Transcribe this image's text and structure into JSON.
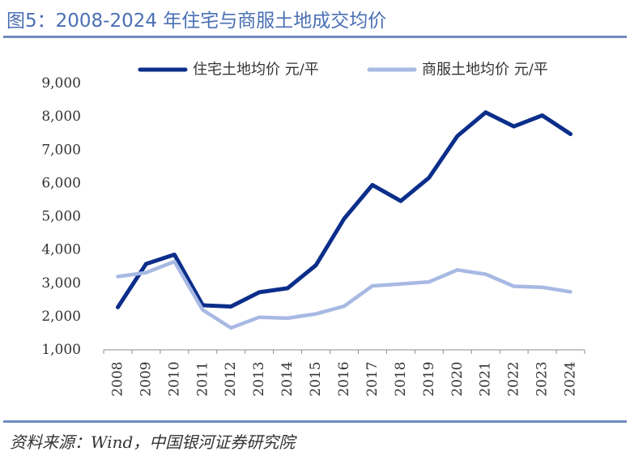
{
  "header": {
    "title": "图5：2008-2024 年住宅与商服土地成交均价"
  },
  "footer": {
    "source": "资料来源：Wind，中国银河证券研究院"
  },
  "chart_data": {
    "type": "line",
    "title": "图5：2008-2024 年住宅与商服土地成交均价",
    "xlabel": "",
    "ylabel": "",
    "categories": [
      "2008",
      "2009",
      "2010",
      "2011",
      "2012",
      "2013",
      "2014",
      "2015",
      "2016",
      "2017",
      "2018",
      "2019",
      "2020",
      "2021",
      "2022",
      "2023",
      "2024"
    ],
    "ylim": [
      1000,
      9000
    ],
    "yticks": [
      1000,
      2000,
      3000,
      4000,
      5000,
      6000,
      7000,
      8000,
      9000
    ],
    "ytick_labels": [
      "1,000",
      "2,000",
      "3,000",
      "4,000",
      "5,000",
      "6,000",
      "7,000",
      "8,000",
      "9,000"
    ],
    "legend_position": "top-center",
    "grid": false,
    "series": [
      {
        "name": "住宅土地均价 元/平",
        "color": "#0b2e8a",
        "values": [
          2280,
          3580,
          3860,
          2340,
          2300,
          2730,
          2850,
          3540,
          4940,
          5950,
          5470,
          6170,
          7420,
          8130,
          7710,
          8040,
          7480
        ]
      },
      {
        "name": "商服土地均价 元/平",
        "color": "#a7b9e3",
        "values": [
          3200,
          3320,
          3650,
          2200,
          1660,
          1980,
          1950,
          2080,
          2310,
          2920,
          2980,
          3040,
          3400,
          3270,
          2910,
          2880,
          2740
        ]
      }
    ]
  }
}
